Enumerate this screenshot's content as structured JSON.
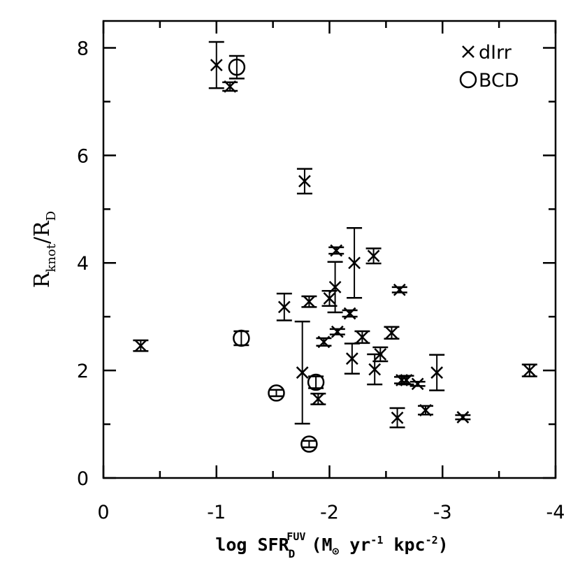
{
  "chart_data": {
    "type": "scatter",
    "x_ticks": [
      "0",
      "-1",
      "-2",
      "-3",
      "-4"
    ],
    "y_ticks": [
      "0",
      "2",
      "4",
      "6",
      "8"
    ],
    "xlim": [
      0,
      -4
    ],
    "ylim": [
      0,
      8.5
    ],
    "xlabel": {
      "prefix": "log SFR",
      "sub": "D",
      "sup": "FUV",
      "units_open": "(M",
      "units_sun": "⊙",
      "units_yr": " yr",
      "units_yr_exp": "-1",
      "units_kpc": " kpc",
      "units_kpc_exp": "-2",
      "units_close": ")"
    },
    "ylabel": {
      "r1": "R",
      "s1": "knot",
      "slash": "/R",
      "s2": "D"
    },
    "legend": {
      "position": "top-right",
      "entries": [
        "dIrr",
        "BCD"
      ]
    },
    "series": [
      {
        "name": "dIrr",
        "marker": "x",
        "points": [
          {
            "x": -0.33,
            "y": 2.46,
            "err": 0.1
          },
          {
            "x": -1.0,
            "y": 7.68,
            "err": 0.43
          },
          {
            "x": -1.12,
            "y": 7.28,
            "err": 0.08
          },
          {
            "x": -1.6,
            "y": 3.18,
            "err": 0.25
          },
          {
            "x": -1.78,
            "y": 5.52,
            "err": 0.23
          },
          {
            "x": -1.76,
            "y": 1.96,
            "err": 0.95
          },
          {
            "x": -1.82,
            "y": 3.28,
            "err": 0.1
          },
          {
            "x": -1.9,
            "y": 1.47,
            "err": 0.1
          },
          {
            "x": -1.95,
            "y": 2.53,
            "err": 0.07
          },
          {
            "x": -2.0,
            "y": 3.34,
            "err": 0.14
          },
          {
            "x": -2.05,
            "y": 3.55,
            "err": 0.47
          },
          {
            "x": -2.06,
            "y": 4.23,
            "err": 0.06
          },
          {
            "x": -2.07,
            "y": 2.72,
            "err": 0.05
          },
          {
            "x": -2.18,
            "y": 3.06,
            "err": 0.06
          },
          {
            "x": -2.2,
            "y": 2.22,
            "err": 0.28
          },
          {
            "x": -2.22,
            "y": 4.0,
            "err": 0.65
          },
          {
            "x": -2.29,
            "y": 2.62,
            "err": 0.11
          },
          {
            "x": -2.39,
            "y": 4.13,
            "err": 0.14
          },
          {
            "x": -2.4,
            "y": 2.02,
            "err": 0.28
          },
          {
            "x": -2.45,
            "y": 2.3,
            "err": 0.13
          },
          {
            "x": -2.55,
            "y": 2.7,
            "err": 0.11
          },
          {
            "x": -2.6,
            "y": 1.12,
            "err": 0.18
          },
          {
            "x": -2.62,
            "y": 3.5,
            "err": 0.05
          },
          {
            "x": -2.64,
            "y": 1.82,
            "err": 0.06
          },
          {
            "x": -2.68,
            "y": 1.82,
            "err": 0.08
          },
          {
            "x": -2.78,
            "y": 1.75,
            "err": 0.04
          },
          {
            "x": -2.85,
            "y": 1.26,
            "err": 0.08
          },
          {
            "x": -2.95,
            "y": 1.96,
            "err": 0.33
          },
          {
            "x": -3.18,
            "y": 1.13,
            "err": 0.04
          },
          {
            "x": -3.77,
            "y": 2.0,
            "err": 0.11
          }
        ]
      },
      {
        "name": "BCD",
        "marker": "circle",
        "points": [
          {
            "x": -1.18,
            "y": 7.64,
            "err": 0.21
          },
          {
            "x": -1.22,
            "y": 2.6,
            "err": 0.13
          },
          {
            "x": -1.53,
            "y": 1.58,
            "err": 0.06
          },
          {
            "x": -1.82,
            "y": 0.63,
            "err": 0.06
          },
          {
            "x": -1.88,
            "y": 1.78,
            "err": 0.11
          }
        ]
      }
    ]
  }
}
